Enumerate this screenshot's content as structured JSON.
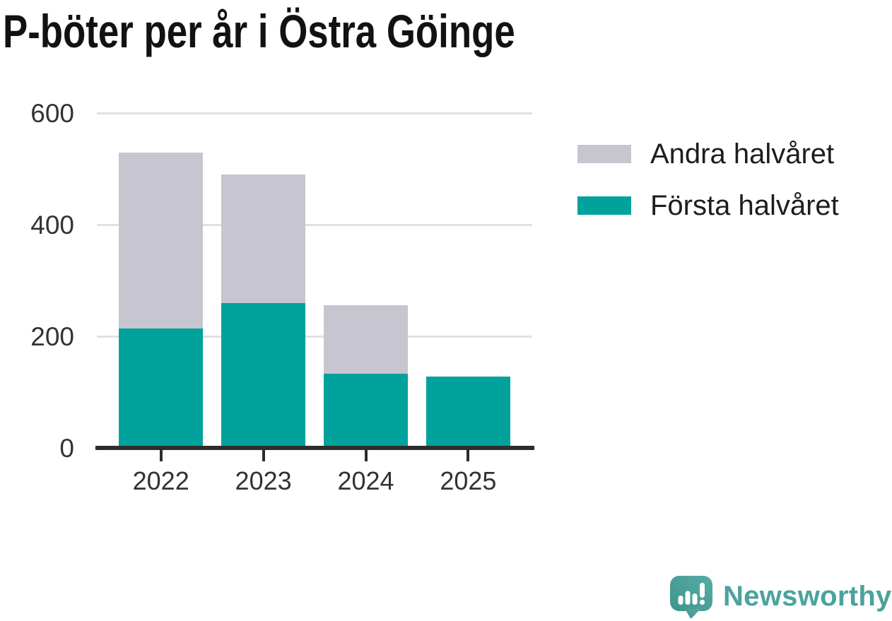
{
  "title": "P-böter per år i Östra Göinge",
  "legend": {
    "items": [
      {
        "label": "Andra halvåret",
        "color": "#c7c5cf"
      },
      {
        "label": "Första halvåret",
        "color": "#00a29b"
      }
    ]
  },
  "chart_data": {
    "type": "bar",
    "stacked": true,
    "title": "P-böter per år i Östra Göinge",
    "categories": [
      "2022",
      "2023",
      "2024",
      "2025"
    ],
    "series": [
      {
        "name": "Första halvåret",
        "color": "#00a29b",
        "values": [
          215,
          260,
          134,
          128
        ]
      },
      {
        "name": "Andra halvåret",
        "color": "#c7c5cf",
        "values": [
          315,
          231,
          122,
          0
        ]
      }
    ],
    "totals": [
      530,
      491,
      256,
      128
    ],
    "xlabel": "",
    "ylabel": "",
    "ylim": [
      0,
      600
    ],
    "yticks": [
      0,
      200,
      400,
      600
    ],
    "grid": true,
    "legend_position": "upper-right"
  },
  "branding": {
    "logo_text": "Newsworthy",
    "logo_icon": "newsworthy-speech-bubble-bar-chart-icon",
    "logo_color": "#4ba39c"
  },
  "colors": {
    "background": "#ffffff",
    "title_text": "#121212",
    "axis_line": "#2d2d2d",
    "tick_label": "#333333",
    "gridline": "#e1e0e3",
    "series_first_half": "#00a29b",
    "series_second_half": "#c7c5cf"
  }
}
